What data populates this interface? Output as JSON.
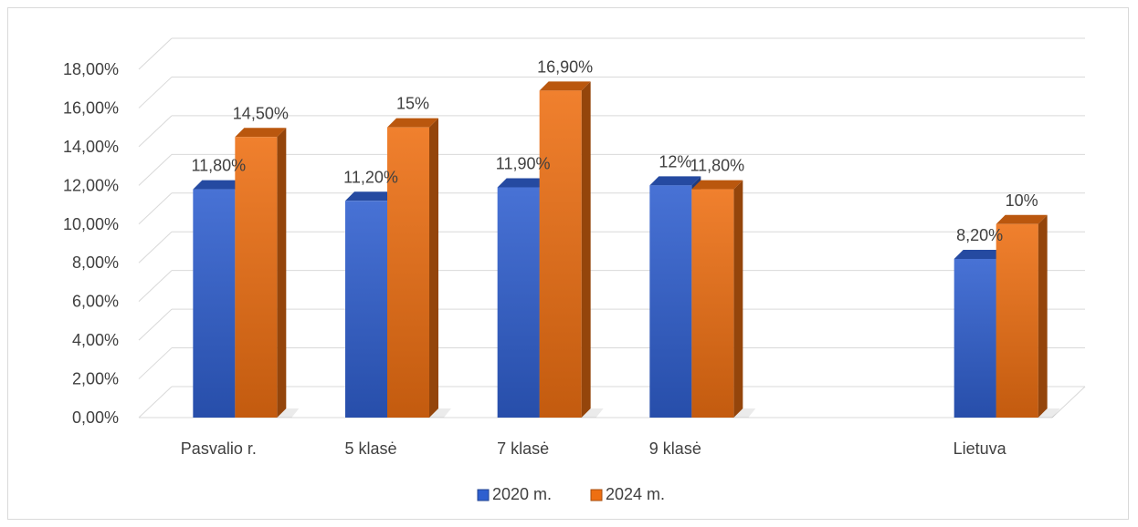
{
  "chart_data": {
    "type": "bar",
    "categories": [
      "Pasvalio r.",
      "5 klasė",
      "7 klasė",
      "9 klasė",
      "",
      "Lietuva"
    ],
    "series": [
      {
        "name": "2020 m.",
        "values": [
          11.8,
          11.2,
          11.9,
          12,
          null,
          8.2
        ],
        "labels": [
          "11,80%",
          "11,20%",
          "11,90%",
          "12%",
          "",
          "8,20%"
        ],
        "color": "#2f5fcf"
      },
      {
        "name": "2024 m.",
        "values": [
          14.5,
          15,
          16.9,
          11.8,
          null,
          10
        ],
        "labels": [
          "14,50%",
          "15%",
          "16,90%",
          "11,80%",
          "",
          "10%"
        ],
        "color": "#ee6f12"
      }
    ],
    "ylim": [
      0,
      18
    ],
    "ytick_step": 2,
    "yticks": [
      "0,00%",
      "2,00%",
      "4,00%",
      "6,00%",
      "8,00%",
      "10,00%",
      "12,00%",
      "14,00%",
      "16,00%",
      "18,00%"
    ],
    "grid": true,
    "legend_position": "bottom",
    "title": "",
    "xlabel": "",
    "ylabel": ""
  }
}
